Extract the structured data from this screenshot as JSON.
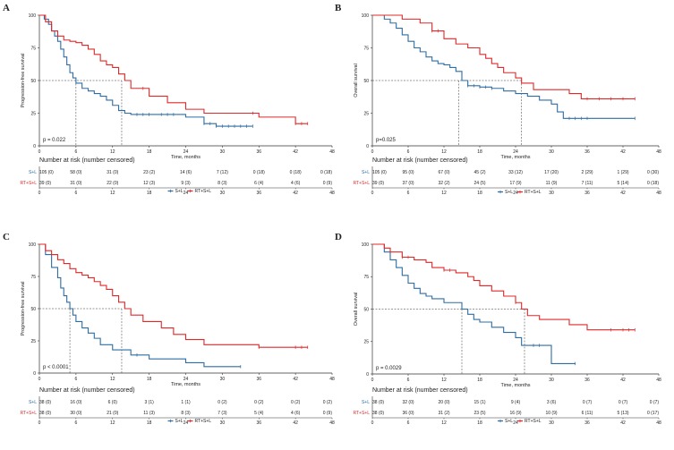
{
  "colors": {
    "series1": "#2e6da4",
    "series2": "#e02828",
    "axis": "#333333",
    "guide": "#333333"
  },
  "chart_data": [
    {
      "panel": "A",
      "type": "line",
      "step": true,
      "ylabel": "Progression-free survival",
      "xlabel": "Time, months",
      "ylim": [
        0,
        100
      ],
      "xlim": [
        0,
        48
      ],
      "xticks": [
        "0",
        "6",
        "12",
        "18",
        "24",
        "30",
        "36",
        "42",
        "48"
      ],
      "yticks": [
        "0",
        "25",
        "50",
        "75",
        "100"
      ],
      "pvalue": "p = 0.022",
      "medians": [
        6,
        13.5
      ],
      "risk_title": "Number at risk (number censored)",
      "legend": [
        "S+L",
        "RT+S+L"
      ],
      "series": [
        {
          "name": "S+L",
          "color": "#2e6da4",
          "x": [
            0,
            0.8,
            1.5,
            2,
            2.5,
            3,
            3.5,
            4,
            4.5,
            5,
            5.5,
            6,
            7,
            8,
            9,
            10,
            11,
            12,
            13,
            14,
            15,
            16,
            20,
            24,
            27,
            29,
            33,
            35
          ],
          "y": [
            100,
            97,
            93,
            88,
            84,
            80,
            74,
            68,
            62,
            56,
            52,
            48,
            44,
            42,
            40,
            38,
            35,
            31,
            27,
            25,
            24,
            24,
            24,
            22,
            17,
            15,
            15,
            15
          ],
          "censored_x": [
            16,
            17,
            18,
            20,
            21,
            22,
            27,
            28,
            29,
            30,
            31,
            32,
            33,
            34,
            35
          ]
        },
        {
          "name": "RT+S+L",
          "color": "#e02828",
          "x": [
            0,
            1,
            2,
            3,
            4,
            5,
            6,
            7,
            8,
            9,
            10,
            11,
            12,
            13,
            14,
            15,
            18,
            21,
            24,
            27,
            30,
            33,
            36,
            39,
            42,
            44
          ],
          "y": [
            100,
            95,
            88,
            84,
            81,
            80,
            79,
            77,
            74,
            70,
            65,
            62,
            60,
            55,
            50,
            44,
            38,
            33,
            28,
            25,
            25,
            25,
            22,
            22,
            17,
            17
          ],
          "censored_x": [
            17,
            35,
            42,
            43,
            44
          ]
        }
      ],
      "risk": [
        {
          "label": "S+L",
          "values": [
            "105 (0)",
            "58 (0)",
            "31 (0)",
            "23 (2)",
            "14 (6)",
            "7 (12)",
            "0 (18)",
            "0 (18)",
            "0 (18)"
          ]
        },
        {
          "label": "RT+S+L",
          "values": [
            "39 (0)",
            "31 (0)",
            "22 (0)",
            "12 (3)",
            "9 (3)",
            "8 (3)",
            "6 (4)",
            "4 (6)",
            "0 (9)"
          ]
        }
      ]
    },
    {
      "panel": "B",
      "type": "line",
      "step": true,
      "ylabel": "Overall survival",
      "xlabel": "Time, months",
      "ylim": [
        0,
        100
      ],
      "xlim": [
        0,
        48
      ],
      "xticks": [
        "0",
        "6",
        "12",
        "18",
        "24",
        "30",
        "36",
        "42",
        "48"
      ],
      "yticks": [
        "0",
        "25",
        "50",
        "75",
        "100"
      ],
      "pvalue": "p=0.025",
      "medians": [
        14.5,
        25
      ],
      "risk_title": "Number at risk (number censored)",
      "legend": [
        "S+L",
        "RT+S+L"
      ],
      "series": [
        {
          "name": "S+L",
          "color": "#2e6da4",
          "x": [
            0,
            2,
            3,
            4,
            5,
            6,
            7,
            8,
            9,
            10,
            11,
            12,
            13,
            14,
            15,
            16,
            18,
            20,
            22,
            24,
            26,
            28,
            30,
            31,
            32,
            34,
            44
          ],
          "y": [
            100,
            97,
            94,
            90,
            85,
            80,
            75,
            72,
            68,
            65,
            63,
            62,
            60,
            57,
            50,
            46,
            45,
            44,
            42,
            40,
            38,
            35,
            32,
            26,
            21,
            21,
            21
          ],
          "censored_x": [
            16,
            17,
            18,
            19,
            20,
            33,
            34,
            35,
            36,
            44
          ]
        },
        {
          "name": "RT+S+L",
          "color": "#e02828",
          "x": [
            0,
            4,
            5,
            8,
            10,
            12,
            14,
            16,
            18,
            19,
            20,
            21,
            22,
            24,
            25,
            27,
            30,
            33,
            35,
            38,
            44
          ],
          "y": [
            100,
            100,
            97,
            94,
            88,
            82,
            78,
            75,
            70,
            67,
            63,
            60,
            56,
            52,
            48,
            43,
            43,
            40,
            36,
            36,
            36
          ],
          "censored_x": [
            10,
            11,
            36,
            38,
            40,
            42,
            44
          ]
        }
      ],
      "risk": [
        {
          "label": "S+L",
          "values": [
            "105 (0)",
            "95 (0)",
            "67 (0)",
            "45 (2)",
            "33 (12)",
            "17 (20)",
            "2 (29)",
            "1 (29)",
            "0 (30)"
          ]
        },
        {
          "label": "RT+S+L",
          "values": [
            "39 (0)",
            "37 (0)",
            "32 (2)",
            "24 (5)",
            "17 (9)",
            "11 (9)",
            "7 (11)",
            "5 (14)",
            "0 (18)"
          ]
        }
      ]
    },
    {
      "panel": "C",
      "type": "line",
      "step": true,
      "ylabel": "Progression-free survival",
      "xlabel": "Time, months",
      "ylim": [
        0,
        100
      ],
      "xlim": [
        0,
        48
      ],
      "xticks": [
        "0",
        "6",
        "12",
        "18",
        "24",
        "30",
        "36",
        "42",
        "48"
      ],
      "yticks": [
        "0",
        "25",
        "50",
        "75",
        "100"
      ],
      "pvalue": "p < 0.0001",
      "medians": [
        5,
        13.5
      ],
      "risk_title": "Number at risk (number censored)",
      "legend": [
        "S+L",
        "RT+S+L"
      ],
      "series": [
        {
          "name": "S+L",
          "color": "#2e6da4",
          "x": [
            0,
            1,
            2,
            3,
            3.5,
            4,
            4.5,
            5,
            5.5,
            6,
            7,
            8,
            9,
            10,
            12,
            15,
            18,
            24,
            27,
            30,
            33
          ],
          "y": [
            100,
            92,
            82,
            74,
            66,
            60,
            55,
            50,
            45,
            40,
            35,
            31,
            27,
            22,
            18,
            14,
            11,
            8,
            5,
            5,
            5
          ],
          "censored_x": [
            16,
            33
          ]
        },
        {
          "name": "RT+S+L",
          "color": "#e02828",
          "x": [
            0,
            1,
            2,
            3,
            4,
            5,
            6,
            7,
            8,
            9,
            10,
            11,
            12,
            13,
            14,
            15,
            17,
            20,
            22,
            24,
            27,
            30,
            36,
            44
          ],
          "y": [
            100,
            95,
            92,
            88,
            85,
            81,
            78,
            76,
            74,
            71,
            68,
            65,
            60,
            55,
            50,
            45,
            40,
            35,
            30,
            26,
            22,
            22,
            20,
            20
          ],
          "censored_x": [
            36,
            42,
            43,
            44
          ]
        }
      ],
      "risk": [
        {
          "label": "S+L",
          "values": [
            "38 (0)",
            "16 (0)",
            "6 (0)",
            "3 (1)",
            "1 (1)",
            "0 (2)",
            "0 (2)",
            "0 (2)",
            "0 (2)"
          ]
        },
        {
          "label": "RT+S+L",
          "values": [
            "38 (0)",
            "30 (0)",
            "21 (0)",
            "11 (3)",
            "8 (3)",
            "7 (3)",
            "5 (4)",
            "4 (6)",
            "0 (9)"
          ]
        }
      ]
    },
    {
      "panel": "D",
      "type": "line",
      "step": true,
      "ylabel": "Overall survival",
      "xlabel": "Time, months",
      "ylim": [
        0,
        100
      ],
      "xlim": [
        0,
        48
      ],
      "xticks": [
        "0",
        "6",
        "12",
        "18",
        "24",
        "30",
        "36",
        "42",
        "48"
      ],
      "yticks": [
        "0",
        "25",
        "50",
        "75",
        "100"
      ],
      "pvalue": "p = 0.0029",
      "medians": [
        15,
        25.5
      ],
      "risk_title": "Number at risk (number censored)",
      "legend": [
        "S+L",
        "RT+S+L"
      ],
      "series": [
        {
          "name": "S+L",
          "color": "#2e6da4",
          "x": [
            0,
            2,
            3,
            4,
            5,
            6,
            7,
            8,
            9,
            10,
            12,
            14,
            15,
            16,
            17,
            18,
            20,
            22,
            24,
            25,
            27,
            30,
            33,
            34
          ],
          "y": [
            100,
            94,
            88,
            82,
            76,
            70,
            66,
            62,
            60,
            58,
            55,
            55,
            50,
            46,
            42,
            40,
            36,
            32,
            28,
            22,
            22,
            8,
            8,
            8
          ],
          "censored_x": [
            27,
            28,
            34
          ]
        },
        {
          "name": "RT+S+L",
          "color": "#e02828",
          "x": [
            0,
            2,
            3,
            5,
            7,
            9,
            10,
            12,
            14,
            16,
            17,
            18,
            20,
            22,
            24,
            25,
            26,
            28,
            30,
            33,
            36,
            38,
            44
          ],
          "y": [
            100,
            97,
            94,
            90,
            88,
            86,
            82,
            80,
            78,
            75,
            72,
            68,
            64,
            60,
            55,
            50,
            45,
            42,
            42,
            38,
            34,
            34,
            34
          ],
          "censored_x": [
            5,
            6,
            12,
            13,
            24,
            40,
            42,
            43,
            44
          ]
        }
      ],
      "risk": [
        {
          "label": "S+L",
          "values": [
            "38 (0)",
            "32 (0)",
            "20 (0)",
            "15 (1)",
            "9 (4)",
            "3 (6)",
            "0 (7)",
            "0 (7)",
            "0 (7)"
          ]
        },
        {
          "label": "RT+S+L",
          "values": [
            "38 (0)",
            "36 (0)",
            "31 (2)",
            "23 (5)",
            "16 (9)",
            "10 (9)",
            "6 (11)",
            "5 (13)",
            "0 (17)"
          ]
        }
      ]
    }
  ]
}
